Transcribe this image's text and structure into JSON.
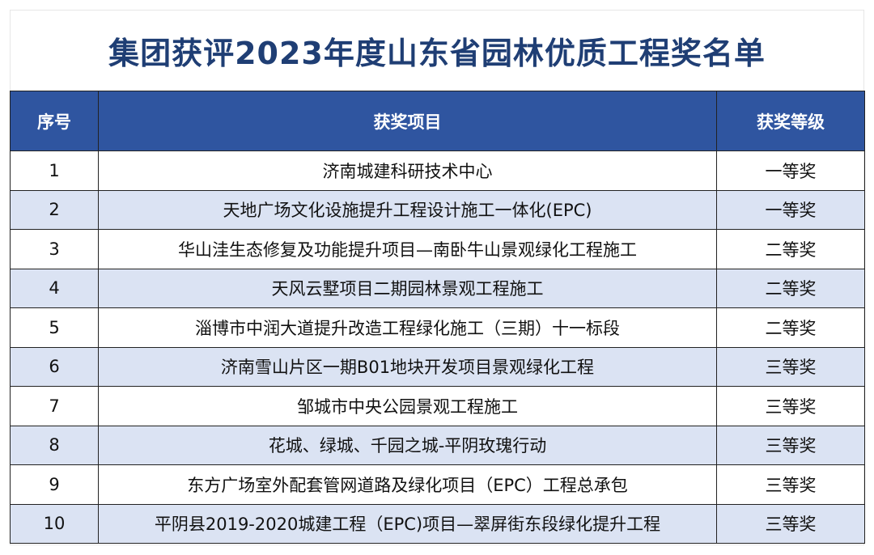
{
  "title": "集团获评2023年度山东省园林优质工程奖名单",
  "headers": {
    "index": "序号",
    "project": "获奖项目",
    "level": "获奖等级"
  },
  "colors": {
    "title": "#1f3e74",
    "header_bg": "#2f55a0",
    "alt_row": "#dbe3f3"
  },
  "rows": [
    {
      "index": "1",
      "project": "济南城建科研技术中心",
      "level": "一等奖"
    },
    {
      "index": "2",
      "project": "天地广场文化设施提升工程设计施工一体化(EPC)",
      "level": "一等奖"
    },
    {
      "index": "3",
      "project": "华山洼生态修复及功能提升项目—南卧牛山景观绿化工程施工",
      "level": "二等奖"
    },
    {
      "index": "4",
      "project": "天风云墅项目二期园林景观工程施工",
      "level": "二等奖"
    },
    {
      "index": "5",
      "project": "淄博市中润大道提升改造工程绿化施工（三期）十一标段",
      "level": "二等奖"
    },
    {
      "index": "6",
      "project": "济南雪山片区一期B01地块开发项目景观绿化工程",
      "level": "三等奖"
    },
    {
      "index": "7",
      "project": "邹城市中央公园景观工程施工",
      "level": "三等奖"
    },
    {
      "index": "8",
      "project": "花城、绿城、千园之城-平阴玫瑰行动",
      "level": "三等奖"
    },
    {
      "index": "9",
      "project": "东方广场室外配套管网道路及绿化项目（EPC）工程总承包",
      "level": "三等奖"
    },
    {
      "index": "10",
      "project": "平阴县2019-2020城建工程（EPC)项目—翠屏街东段绿化提升工程",
      "level": "三等奖"
    }
  ]
}
